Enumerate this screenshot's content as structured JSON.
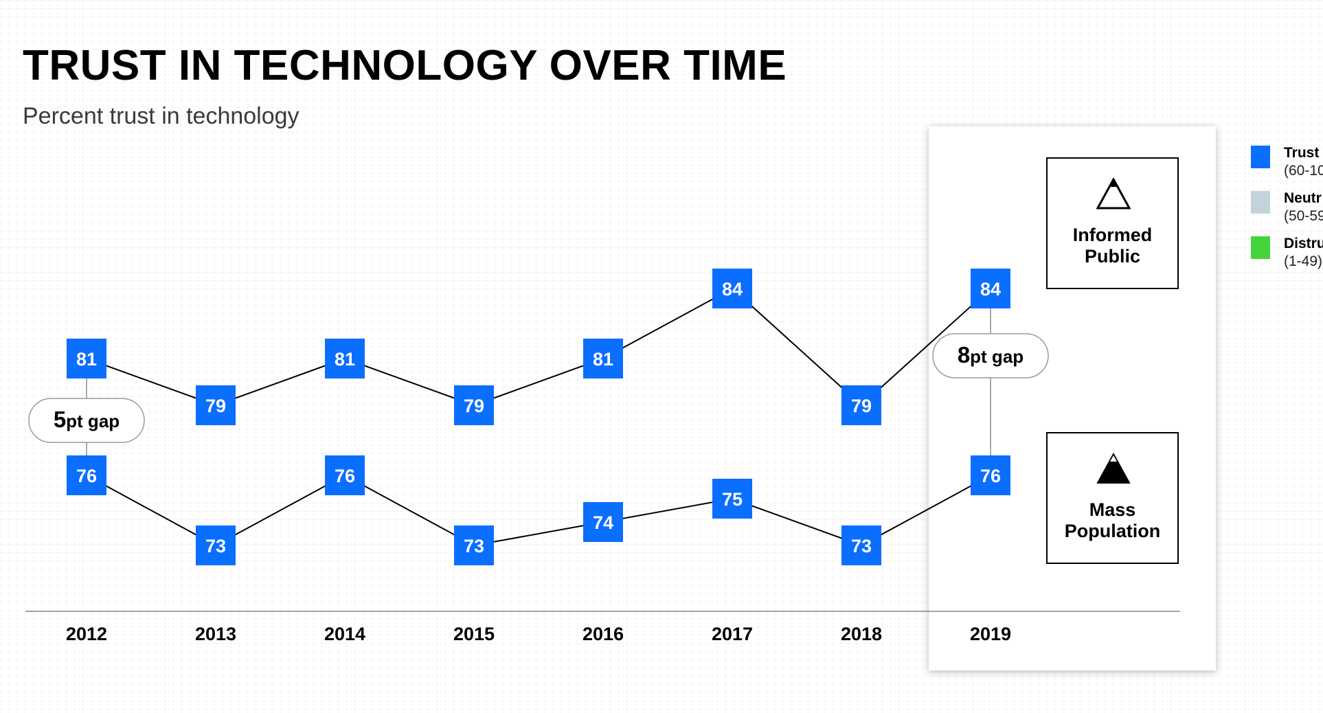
{
  "title": "TRUST IN TECHNOLOGY OVER TIME",
  "subtitle": "Percent trust in technology",
  "audiences": {
    "informed": {
      "label": "Informed\nPublic",
      "icon": "outline-triangle-icon"
    },
    "mass": {
      "label": "Mass\nPopulation",
      "icon": "filled-triangle-icon"
    }
  },
  "legend": [
    {
      "name": "Trust",
      "range": "(60-10",
      "color": "#0A6EFF"
    },
    {
      "name": "Neutr",
      "range": "(50-59",
      "color": "#C3D3DC"
    },
    {
      "name": "Distru",
      "range": "(1-49)",
      "color": "#45D33C"
    }
  ],
  "colors": {
    "marker": "#0A6EFF",
    "line": "#000000",
    "axis": "#888888"
  },
  "chart_data": {
    "type": "line",
    "categories": [
      "2012",
      "2013",
      "2014",
      "2015",
      "2016",
      "2017",
      "2018",
      "2019"
    ],
    "series": [
      {
        "name": "Informed Public",
        "values": [
          81,
          79,
          81,
          79,
          81,
          84,
          79,
          84
        ]
      },
      {
        "name": "Mass Population",
        "values": [
          76,
          73,
          76,
          73,
          74,
          75,
          73,
          76
        ]
      }
    ],
    "gaps": [
      {
        "category": "2012",
        "value": "5",
        "suffix": "pt gap"
      },
      {
        "category": "2019",
        "value": "8",
        "suffix": "pt gap"
      }
    ],
    "highlight_category": "2019"
  }
}
